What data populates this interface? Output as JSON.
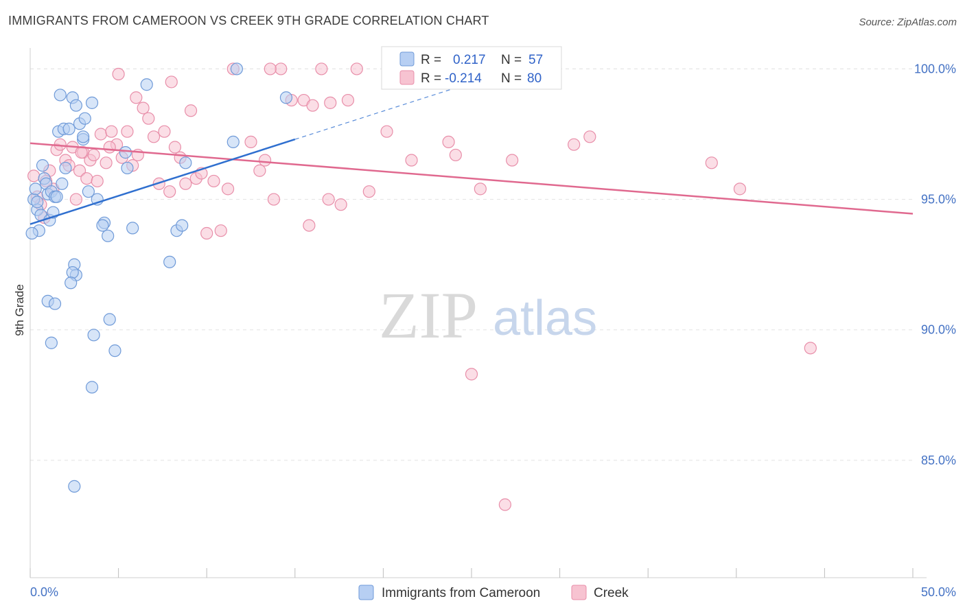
{
  "title": "IMMIGRANTS FROM CAMEROON VS CREEK 9TH GRADE CORRELATION CHART",
  "source": "Source: ZipAtlas.com",
  "watermark": {
    "zip": "ZIP",
    "atlas": "atlas"
  },
  "colors": {
    "blue_fill": "#b7cff3",
    "blue_stroke": "#6f9ad8",
    "blue_line": "#2f6fcf",
    "pink_fill": "#f7c3d1",
    "pink_stroke": "#e88ea9",
    "pink_line": "#e0698f",
    "axis_text": "#4472c4",
    "grid": "#e3e3e3"
  },
  "legend": {
    "items": [
      {
        "r_label": "R =",
        "r_value": "0.217",
        "n_label": "N =",
        "n_value": "57"
      },
      {
        "r_label": "R =",
        "r_value": "-0.214",
        "n_label": "N =",
        "n_value": "80"
      }
    ]
  },
  "bottom_legend": [
    "Immigrants from Cameroon",
    "Creek"
  ],
  "chart_data": {
    "type": "scatter",
    "title": "IMMIGRANTS FROM CAMEROON VS CREEK 9TH GRADE CORRELATION CHART",
    "xlabel": "",
    "ylabel": "9th Grade",
    "xlim": [
      0,
      50
    ],
    "ylim": [
      80.5,
      100.8
    ],
    "x_tick_labels": [
      "0.0%",
      "50.0%"
    ],
    "y_ticks": [
      85,
      90,
      95,
      100
    ],
    "y_tick_labels": [
      "85.0%",
      "90.0%",
      "95.0%",
      "100.0%"
    ],
    "grid": true,
    "legend_position": "top-center",
    "series": [
      {
        "name": "Immigrants from Cameroon",
        "color": "#b7cff3",
        "r": 0.217,
        "n": 57,
        "trend": {
          "x": [
            0,
            15
          ],
          "y": [
            94.05,
            97.3
          ],
          "dashed_extension_to_x": 25
        },
        "points": [
          [
            0.2,
            95.0
          ],
          [
            0.3,
            95.4
          ],
          [
            0.4,
            94.6
          ],
          [
            0.5,
            93.8
          ],
          [
            0.6,
            94.4
          ],
          [
            0.7,
            96.3
          ],
          [
            0.8,
            95.8
          ],
          [
            0.9,
            95.6
          ],
          [
            1.0,
            95.2
          ],
          [
            1.1,
            94.2
          ],
          [
            1.2,
            95.3
          ],
          [
            1.3,
            94.5
          ],
          [
            1.4,
            95.1
          ],
          [
            1.6,
            97.6
          ],
          [
            1.7,
            99.0
          ],
          [
            1.8,
            95.6
          ],
          [
            1.9,
            97.7
          ],
          [
            2.0,
            96.2
          ],
          [
            2.2,
            97.7
          ],
          [
            2.4,
            98.9
          ],
          [
            2.6,
            98.6
          ],
          [
            2.8,
            97.9
          ],
          [
            3.0,
            97.3
          ],
          [
            3.1,
            98.1
          ],
          [
            3.3,
            95.3
          ],
          [
            3.5,
            98.7
          ],
          [
            3.8,
            95.0
          ],
          [
            4.2,
            94.1
          ],
          [
            4.4,
            93.6
          ],
          [
            4.1,
            94.0
          ],
          [
            4.5,
            90.4
          ],
          [
            4.8,
            89.2
          ],
          [
            5.4,
            96.8
          ],
          [
            5.5,
            96.2
          ],
          [
            5.8,
            93.9
          ],
          [
            6.6,
            99.4
          ],
          [
            2.5,
            92.5
          ],
          [
            2.6,
            92.1
          ],
          [
            2.4,
            92.2
          ],
          [
            2.3,
            91.8
          ],
          [
            1.0,
            91.1
          ],
          [
            1.4,
            91.0
          ],
          [
            1.2,
            89.5
          ],
          [
            3.6,
            89.8
          ],
          [
            3.5,
            87.8
          ],
          [
            2.5,
            84.0
          ],
          [
            7.9,
            92.6
          ],
          [
            8.3,
            93.8
          ],
          [
            8.6,
            94.0
          ],
          [
            8.8,
            96.4
          ],
          [
            11.5,
            97.2
          ],
          [
            11.7,
            100.0
          ],
          [
            14.5,
            98.9
          ],
          [
            0.1,
            93.7
          ],
          [
            0.4,
            94.9
          ],
          [
            1.5,
            95.1
          ],
          [
            3.0,
            97.4
          ]
        ]
      },
      {
        "name": "Creek",
        "color": "#f7c3d1",
        "r": -0.214,
        "n": 80,
        "trend": {
          "x": [
            0,
            50
          ],
          "y": [
            97.15,
            94.45
          ]
        },
        "points": [
          [
            0.2,
            95.9
          ],
          [
            0.4,
            95.1
          ],
          [
            0.6,
            94.8
          ],
          [
            0.8,
            94.3
          ],
          [
            1.1,
            96.1
          ],
          [
            1.3,
            95.4
          ],
          [
            1.5,
            96.9
          ],
          [
            1.7,
            97.1
          ],
          [
            2.0,
            96.5
          ],
          [
            2.2,
            96.3
          ],
          [
            2.4,
            97.0
          ],
          [
            2.6,
            95.0
          ],
          [
            2.8,
            96.1
          ],
          [
            3.0,
            96.8
          ],
          [
            3.2,
            95.8
          ],
          [
            3.4,
            96.5
          ],
          [
            3.6,
            96.7
          ],
          [
            3.8,
            95.7
          ],
          [
            4.0,
            97.5
          ],
          [
            4.3,
            96.4
          ],
          [
            4.6,
            97.6
          ],
          [
            4.9,
            97.1
          ],
          [
            5.2,
            96.6
          ],
          [
            5.5,
            97.6
          ],
          [
            5.8,
            96.3
          ],
          [
            6.1,
            96.7
          ],
          [
            6.4,
            98.5
          ],
          [
            6.7,
            98.1
          ],
          [
            7.0,
            97.4
          ],
          [
            7.3,
            95.6
          ],
          [
            7.6,
            97.6
          ],
          [
            7.9,
            95.3
          ],
          [
            8.2,
            97.0
          ],
          [
            8.5,
            96.6
          ],
          [
            8.8,
            95.6
          ],
          [
            9.1,
            98.4
          ],
          [
            9.4,
            95.8
          ],
          [
            9.7,
            96.0
          ],
          [
            10.0,
            93.7
          ],
          [
            10.4,
            95.7
          ],
          [
            10.8,
            93.8
          ],
          [
            11.2,
            95.4
          ],
          [
            11.5,
            100.0
          ],
          [
            12.5,
            97.2
          ],
          [
            13.0,
            96.1
          ],
          [
            13.3,
            96.5
          ],
          [
            13.8,
            95.0
          ],
          [
            14.2,
            100.0
          ],
          [
            14.8,
            98.8
          ],
          [
            15.5,
            98.8
          ],
          [
            16.0,
            98.6
          ],
          [
            16.5,
            100.0
          ],
          [
            17.6,
            94.8
          ],
          [
            18.0,
            98.8
          ],
          [
            18.5,
            100.0
          ],
          [
            19.2,
            95.3
          ],
          [
            20.2,
            97.6
          ],
          [
            21.6,
            96.5
          ],
          [
            23.1,
            100.0
          ],
          [
            23.7,
            97.2
          ],
          [
            24.1,
            96.7
          ],
          [
            25.0,
            88.3
          ],
          [
            25.5,
            95.4
          ],
          [
            26.9,
            83.3
          ],
          [
            27.3,
            96.5
          ],
          [
            30.8,
            97.1
          ],
          [
            31.7,
            97.4
          ],
          [
            38.6,
            96.4
          ],
          [
            40.2,
            95.4
          ],
          [
            44.2,
            89.3
          ],
          [
            5.0,
            99.8
          ],
          [
            6.0,
            98.9
          ],
          [
            8.0,
            99.5
          ],
          [
            4.5,
            97.0
          ],
          [
            2.9,
            96.8
          ],
          [
            13.6,
            100.0
          ],
          [
            16.9,
            95.0
          ],
          [
            15.8,
            94.0
          ],
          [
            17.0,
            98.7
          ],
          [
            0.9,
            95.7
          ]
        ]
      }
    ]
  }
}
